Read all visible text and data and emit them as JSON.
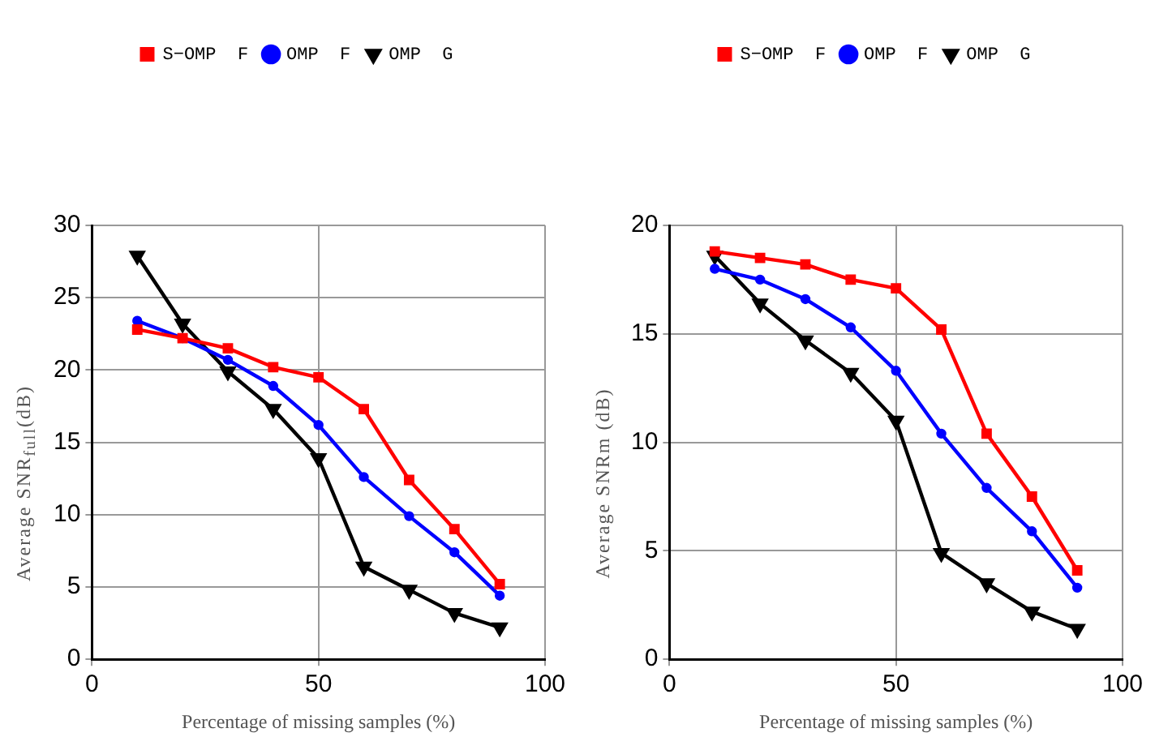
{
  "chart_data": [
    {
      "type": "line",
      "xlabel": "Percentage of missing samples (%)",
      "ylabel": "Average SNR$_{full}$(dB)",
      "x": [
        10,
        20,
        30,
        40,
        50,
        60,
        70,
        80,
        90
      ],
      "xlim": [
        0,
        100
      ],
      "xticks": [
        0,
        50,
        100
      ],
      "ylim": [
        0,
        30
      ],
      "yticks": [
        0,
        5,
        10,
        15,
        20,
        25,
        30
      ],
      "grid": true,
      "legend": "top",
      "series": [
        {
          "name": "S−OMP  F",
          "color": "#ff0000",
          "marker": "square",
          "values": [
            22.8,
            22.2,
            21.5,
            20.2,
            19.5,
            17.3,
            12.4,
            9.0,
            5.2
          ]
        },
        {
          "name": "OMP  F",
          "color": "#0000ff",
          "marker": "circle",
          "values": [
            23.4,
            22.2,
            20.7,
            18.9,
            16.2,
            12.6,
            9.9,
            7.4,
            4.4
          ]
        },
        {
          "name": "OMP  G",
          "color": "#000000",
          "marker": "triangle",
          "values": [
            27.9,
            23.2,
            19.9,
            17.3,
            13.9,
            6.4,
            4.8,
            3.2,
            2.2
          ]
        }
      ]
    },
    {
      "type": "line",
      "xlabel": "Percentage of missing samples (%)",
      "ylabel": "Average SNRm (dB)",
      "x": [
        10,
        20,
        30,
        40,
        50,
        60,
        70,
        80,
        90
      ],
      "xlim": [
        0,
        100
      ],
      "xticks": [
        0,
        50,
        100
      ],
      "ylim": [
        0,
        20
      ],
      "yticks": [
        0,
        5,
        10,
        15,
        20
      ],
      "grid": true,
      "legend": "top",
      "series": [
        {
          "name": "S−OMP  F",
          "color": "#ff0000",
          "marker": "square",
          "values": [
            18.8,
            18.5,
            18.2,
            17.5,
            17.1,
            15.2,
            10.4,
            7.5,
            4.1
          ]
        },
        {
          "name": "OMP  F",
          "color": "#0000ff",
          "marker": "circle",
          "values": [
            18.0,
            17.5,
            16.6,
            15.3,
            13.3,
            10.4,
            7.9,
            5.9,
            3.3
          ]
        },
        {
          "name": "OMP  G",
          "color": "#000000",
          "marker": "triangle",
          "values": [
            18.6,
            16.4,
            14.7,
            13.2,
            11.0,
            4.9,
            3.5,
            2.2,
            1.4
          ]
        }
      ]
    }
  ]
}
